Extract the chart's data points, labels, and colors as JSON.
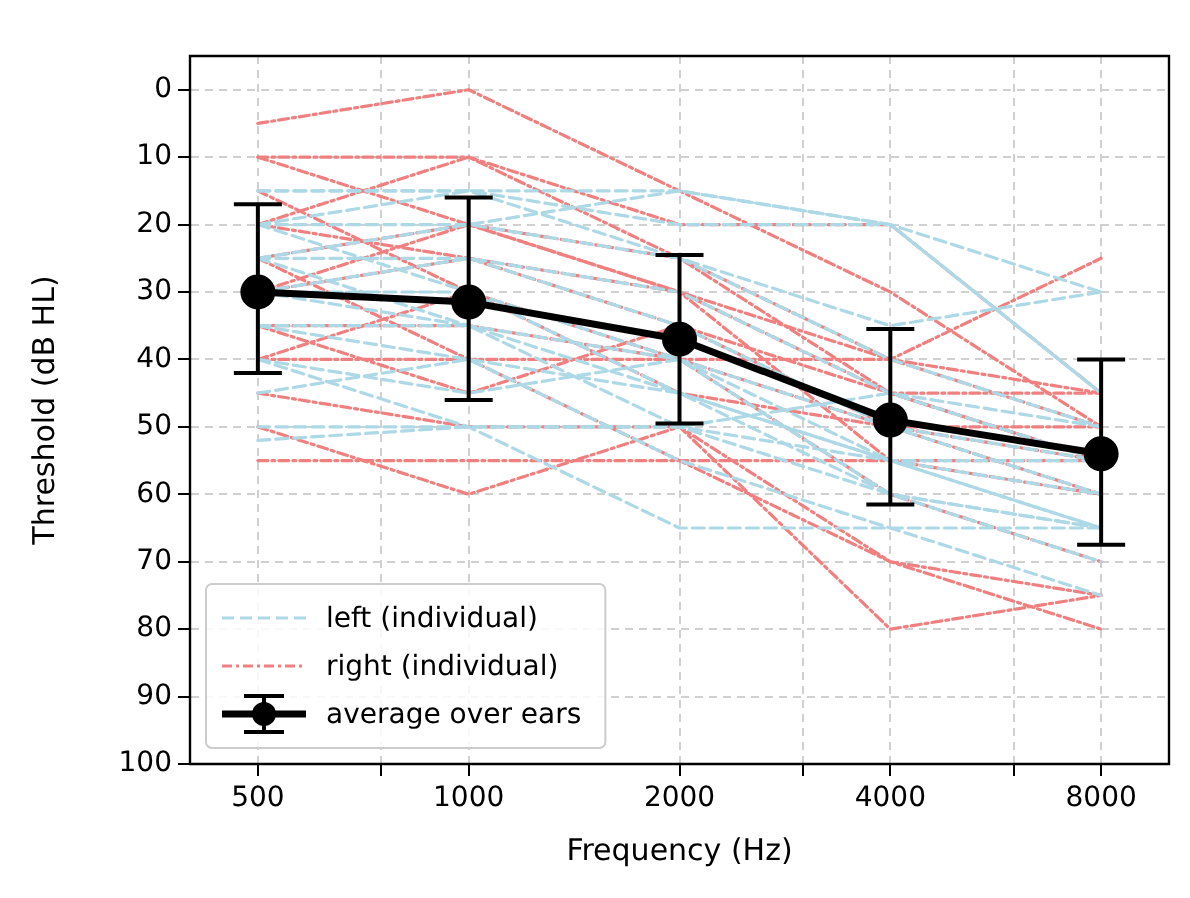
{
  "chart_data": {
    "type": "line",
    "xlabel": "Frequency (Hz)",
    "ylabel": "Threshold (dB HL)",
    "log": "x",
    "x": [
      500,
      1000,
      2000,
      4000,
      8000
    ],
    "xlim": [
      400,
      10000
    ],
    "xticks": [
      500,
      {
        "value": 750,
        "label": null
      },
      1000,
      2000,
      {
        "value": 3000,
        "label": null
      },
      4000,
      {
        "value": 6000,
        "label": null
      },
      8000
    ],
    "ylim": [
      100,
      -5
    ],
    "yticks": [
      0,
      10,
      20,
      30,
      40,
      50,
      60,
      70,
      80,
      90,
      100
    ],
    "grid": true,
    "legend": "bottom left",
    "series": [
      {
        "name": "left (individual)",
        "color": "#add8e6",
        "line_style": "dashed",
        "marker": "none",
        "values": [
          15,
          15,
          20,
          20,
          45
        ]
      },
      {
        "color": "#add8e6",
        "line_style": "dashed",
        "marker": "none",
        "values": [
          15,
          15,
          25,
          40,
          50
        ]
      },
      {
        "color": "#add8e6",
        "line_style": "dashed",
        "marker": "none",
        "values": [
          20,
          15,
          15,
          20,
          30
        ]
      },
      {
        "color": "#add8e6",
        "line_style": "dashed",
        "marker": "none",
        "values": [
          25,
          20,
          15,
          20,
          45
        ]
      },
      {
        "color": "#add8e6",
        "line_style": "dashed",
        "marker": "none",
        "values": [
          20,
          20,
          25,
          35,
          30
        ]
      },
      {
        "color": "#add8e6",
        "line_style": "dashed",
        "marker": "none",
        "values": [
          25,
          25,
          30,
          45,
          55
        ]
      },
      {
        "color": "#add8e6",
        "line_style": "dashed",
        "marker": "none",
        "values": [
          30,
          25,
          35,
          50,
          60
        ]
      },
      {
        "color": "#add8e6",
        "line_style": "dashed",
        "marker": "none",
        "values": [
          30,
          30,
          40,
          55,
          65
        ]
      },
      {
        "color": "#add8e6",
        "line_style": "dashed",
        "marker": "none",
        "values": [
          35,
          35,
          45,
          55,
          55
        ]
      },
      {
        "color": "#add8e6",
        "line_style": "dashed",
        "marker": "none",
        "values": [
          40,
          50,
          65,
          65,
          65
        ]
      },
      {
        "color": "#add8e6",
        "line_style": "dashed",
        "marker": "none",
        "values": [
          50,
          50,
          50,
          60,
          65
        ]
      },
      {
        "color": "#add8e6",
        "line_style": "dashed",
        "marker": "none",
        "values": [
          52,
          50,
          50,
          55,
          60
        ]
      },
      {
        "color": "#add8e6",
        "line_style": "dashed",
        "marker": "none",
        "values": [
          45,
          40,
          45,
          60,
          70
        ]
      },
      {
        "color": "#add8e6",
        "line_style": "dashed",
        "marker": "none",
        "values": [
          25,
          35,
          40,
          50,
          55
        ]
      },
      {
        "color": "#add8e6",
        "line_style": "dashed",
        "marker": "none",
        "values": [
          20,
          30,
          45,
          55,
          65
        ]
      },
      {
        "color": "#add8e6",
        "line_style": "dashed",
        "marker": "none",
        "values": [
          30,
          35,
          50,
          45,
          50
        ]
      },
      {
        "color": "#add8e6",
        "line_style": "dashed",
        "marker": "none",
        "values": [
          40,
          45,
          40,
          60,
          65
        ]
      },
      {
        "color": "#add8e6",
        "line_style": "dashed",
        "marker": "none",
        "values": [
          35,
          40,
          55,
          65,
          75
        ]
      },
      {
        "name": "right (individual)",
        "color": "#f08080",
        "line_style": "dashdot",
        "marker": "none",
        "values": [
          5,
          0,
          15,
          30,
          50
        ]
      },
      {
        "color": "#f08080",
        "line_style": "dashdot",
        "marker": "none",
        "values": [
          10,
          10,
          20,
          20,
          45
        ]
      },
      {
        "color": "#f08080",
        "line_style": "dashdot",
        "marker": "none",
        "values": [
          10,
          20,
          25,
          45,
          55
        ]
      },
      {
        "color": "#f08080",
        "line_style": "dashdot",
        "marker": "none",
        "values": [
          20,
          10,
          25,
          40,
          50
        ]
      },
      {
        "color": "#f08080",
        "line_style": "dashdot",
        "marker": "none",
        "values": [
          25,
          20,
          30,
          40,
          25
        ]
      },
      {
        "color": "#f08080",
        "line_style": "dashdot",
        "marker": "none",
        "values": [
          30,
          25,
          35,
          45,
          55
        ]
      },
      {
        "color": "#f08080",
        "line_style": "dashdot",
        "marker": "none",
        "values": [
          35,
          35,
          40,
          40,
          45
        ]
      },
      {
        "color": "#f08080",
        "line_style": "dashdot",
        "marker": "none",
        "values": [
          40,
          30,
          45,
          50,
          60
        ]
      },
      {
        "color": "#f08080",
        "line_style": "dashdot",
        "marker": "none",
        "values": [
          45,
          50,
          50,
          70,
          75
        ]
      },
      {
        "color": "#f08080",
        "line_style": "dashdot",
        "marker": "none",
        "values": [
          55,
          55,
          55,
          55,
          55
        ]
      },
      {
        "color": "#f08080",
        "line_style": "dashdot",
        "marker": "none",
        "values": [
          50,
          60,
          50,
          80,
          75
        ]
      },
      {
        "color": "#f08080",
        "line_style": "dashdot",
        "marker": "none",
        "values": [
          40,
          40,
          55,
          70,
          80
        ]
      },
      {
        "color": "#f08080",
        "line_style": "dashdot",
        "marker": "none",
        "values": [
          20,
          25,
          30,
          55,
          60
        ]
      },
      {
        "color": "#f08080",
        "line_style": "dashdot",
        "marker": "none",
        "values": [
          15,
          30,
          40,
          60,
          70
        ]
      },
      {
        "color": "#f08080",
        "line_style": "dashdot",
        "marker": "none",
        "values": [
          25,
          40,
          40,
          50,
          55
        ]
      },
      {
        "color": "#f08080",
        "line_style": "dashdot",
        "marker": "none",
        "values": [
          35,
          45,
          35,
          50,
          50
        ]
      },
      {
        "color": "#f08080",
        "line_style": "dashdot",
        "marker": "none",
        "values": [
          30,
          20,
          30,
          45,
          45
        ]
      },
      {
        "name": "average over ears",
        "color": "#000000",
        "line_style": "solid",
        "marker": "circle",
        "values": [
          30,
          31.5,
          37,
          49,
          54
        ],
        "errors": [
          [
            17,
            42
          ],
          [
            16,
            46
          ],
          [
            24.5,
            49.5
          ],
          [
            35.5,
            61.5
          ],
          [
            40,
            67.5
          ]
        ]
      }
    ]
  }
}
